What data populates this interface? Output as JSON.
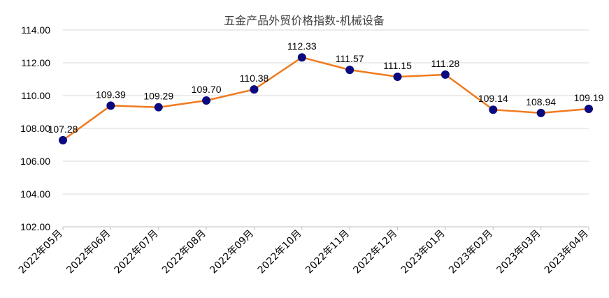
{
  "chart_data": {
    "type": "line",
    "title": "五金产品外贸价格指数-机械设备",
    "xlabel": "",
    "ylabel": "",
    "categories": [
      "2022年05月",
      "2022年06月",
      "2022年07月",
      "2022年08月",
      "2022年09月",
      "2022年10月",
      "2022年11月",
      "2022年12月",
      "2023年01月",
      "2023年02月",
      "2023年03月",
      "2023年04月"
    ],
    "series": [
      {
        "values": [
          107.28,
          109.39,
          109.29,
          109.7,
          110.38,
          112.33,
          111.57,
          111.15,
          111.28,
          109.14,
          108.94,
          109.19
        ],
        "labels": [
          "107.28",
          "109.39",
          "109.29",
          "109.70",
          "110.38",
          "112.33",
          "111.57",
          "111.15",
          "111.28",
          "109.14",
          "108.94",
          "109.19"
        ]
      }
    ],
    "ylim": [
      102,
      114
    ],
    "yticks": [
      "102.00",
      "104.00",
      "106.00",
      "108.00",
      "110.00",
      "112.00",
      "114.00"
    ],
    "grid": true,
    "colors": {
      "line": "#f07a1e",
      "marker": "#0a0a80",
      "grid": "#d9d9d9",
      "axis": "#bfbfbf"
    }
  }
}
